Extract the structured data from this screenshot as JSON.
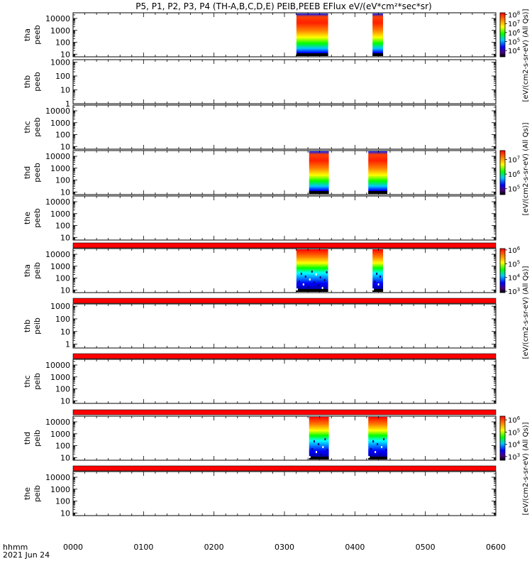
{
  "title": "P5, P1, P2, P3, P4 (TH-A,B,C,D,E) PEIB,PEEB EFlux eV/(eV*cm²*sec*sr)",
  "chart_data": {
    "type": "heatmap",
    "date_label": "2021 Jun 24",
    "time_axis_label": "hhmm",
    "time_ticks": [
      "0000",
      "0100",
      "0200",
      "0300",
      "0400",
      "0500",
      "0600"
    ],
    "time_range_hours": [
      0,
      6
    ],
    "panels": [
      {
        "id": "tha-peeb",
        "label_line1": "tha",
        "label_line2": "peeb",
        "ylog": true,
        "ylim": [
          6,
          30000
        ],
        "yticks": [
          "10",
          "100",
          "1000",
          "10000"
        ],
        "ytick_values": [
          10,
          100,
          1000,
          10000
        ],
        "blocks": [
          {
            "start": 3.17,
            "end": 3.62,
            "style": "electron"
          },
          {
            "start": 4.25,
            "end": 4.4,
            "style": "electron"
          }
        ],
        "fill_bars": false
      },
      {
        "id": "thb-peeb",
        "label_line1": "thb",
        "label_line2": "peeb",
        "ylog": true,
        "ylim": [
          1,
          1500
        ],
        "yticks": [
          "1",
          "10",
          "100",
          "1000"
        ],
        "ytick_values": [
          1,
          10,
          100,
          1000
        ],
        "blocks": [],
        "fill_bars": false
      },
      {
        "id": "thc-peeb",
        "label_line1": "thc",
        "label_line2": "peeb",
        "ylog": true,
        "ylim": [
          6,
          30000
        ],
        "yticks": [
          "10",
          "100",
          "1000",
          "10000"
        ],
        "ytick_values": [
          10,
          100,
          1000,
          10000
        ],
        "blocks": [],
        "fill_bars": false
      },
      {
        "id": "thd-peeb",
        "label_line1": "thd",
        "label_line2": "peeb",
        "ylog": true,
        "ylim": [
          6,
          30000
        ],
        "yticks": [
          "10",
          "100",
          "1000",
          "10000"
        ],
        "ytick_values": [
          10,
          100,
          1000,
          10000
        ],
        "blocks": [
          {
            "start": 3.35,
            "end": 3.63,
            "style": "electron"
          },
          {
            "start": 4.19,
            "end": 4.46,
            "style": "electron"
          }
        ],
        "fill_bars": false
      },
      {
        "id": "the-peeb",
        "label_line1": "the",
        "label_line2": "peeb",
        "ylog": true,
        "ylim": [
          6,
          30000
        ],
        "yticks": [
          "10",
          "100",
          "1000",
          "10000"
        ],
        "ytick_values": [
          10,
          100,
          1000,
          10000
        ],
        "blocks": [],
        "fill_bars": false
      },
      {
        "id": "tha-peib",
        "label_line1": "tha",
        "label_line2": "peib",
        "ylog": true,
        "ylim": [
          6,
          30000
        ],
        "yticks": [
          "10",
          "100",
          "1000",
          "10000"
        ],
        "ytick_values": [
          10,
          100,
          1000,
          10000
        ],
        "blocks": [
          {
            "start": 3.17,
            "end": 3.62,
            "style": "ion"
          },
          {
            "start": 4.25,
            "end": 4.4,
            "style": "ion"
          }
        ],
        "fill_bars": true
      },
      {
        "id": "thb-peib",
        "label_line1": "thb",
        "label_line2": "peib",
        "ylog": true,
        "ylim": [
          0.5,
          1500
        ],
        "yticks": [
          "1",
          "10",
          "100",
          "1000"
        ],
        "ytick_values": [
          1,
          10,
          100,
          1000
        ],
        "blocks": [],
        "fill_bars": true
      },
      {
        "id": "thc-peib",
        "label_line1": "thc",
        "label_line2": "peib",
        "ylog": true,
        "ylim": [
          6,
          30000
        ],
        "yticks": [
          "10",
          "100",
          "1000",
          "10000"
        ],
        "ytick_values": [
          10,
          100,
          1000,
          10000
        ],
        "blocks": [],
        "fill_bars": true
      },
      {
        "id": "thd-peib",
        "label_line1": "thd",
        "label_line2": "peib",
        "ylog": true,
        "ylim": [
          6,
          30000
        ],
        "yticks": [
          "10",
          "100",
          "1000",
          "10000"
        ],
        "ytick_values": [
          10,
          100,
          1000,
          10000
        ],
        "blocks": [
          {
            "start": 3.35,
            "end": 3.63,
            "style": "ion"
          },
          {
            "start": 4.19,
            "end": 4.46,
            "style": "ion"
          }
        ],
        "fill_bars": true
      },
      {
        "id": "the-peib",
        "label_line1": "the",
        "label_line2": "peib",
        "ylog": true,
        "ylim": [
          6,
          30000
        ],
        "yticks": [
          "10",
          "100",
          "1000",
          "10000"
        ],
        "ytick_values": [
          10,
          100,
          1000,
          10000
        ],
        "blocks": [],
        "fill_bars": true
      }
    ],
    "colorbars": [
      {
        "id": "cb-tha-peeb",
        "panel_index": 0,
        "ticks_exp": [
          4,
          5,
          6,
          7,
          8
        ],
        "log_range": [
          3.3,
          8.2
        ]
      },
      {
        "id": "cb-thd-peeb",
        "panel_index": 3,
        "ticks_exp": [
          5,
          6,
          7
        ],
        "log_range": [
          4.6,
          7.6
        ]
      },
      {
        "id": "cb-tha-peib",
        "panel_index": 5,
        "ticks_exp": [
          3,
          4,
          5,
          6
        ],
        "log_range": [
          2.9,
          6.1
        ]
      },
      {
        "id": "cb-thd-peib",
        "panel_index": 8,
        "ticks_exp": [
          3,
          4,
          5,
          6
        ],
        "log_range": [
          2.7,
          6.3
        ]
      }
    ],
    "colorbar_labels": [
      {
        "id": "cbl-1",
        "text": "[eV/(cm2-s-sr-eV) (All Qs)]"
      },
      {
        "id": "cbl-2",
        "text": "[eV/(cm2-s-sr-eV) (All Qs)]"
      },
      {
        "id": "cbl-3",
        "text": "[eV/(cm2-s-sr-eV) (All Qs)]"
      },
      {
        "id": "cbl-4",
        "text": "[eV/(cm2-s-sr-eV) (All Qs)]"
      }
    ],
    "colors": {
      "fill_bar": "#ff0000",
      "frame": "#000000"
    }
  }
}
